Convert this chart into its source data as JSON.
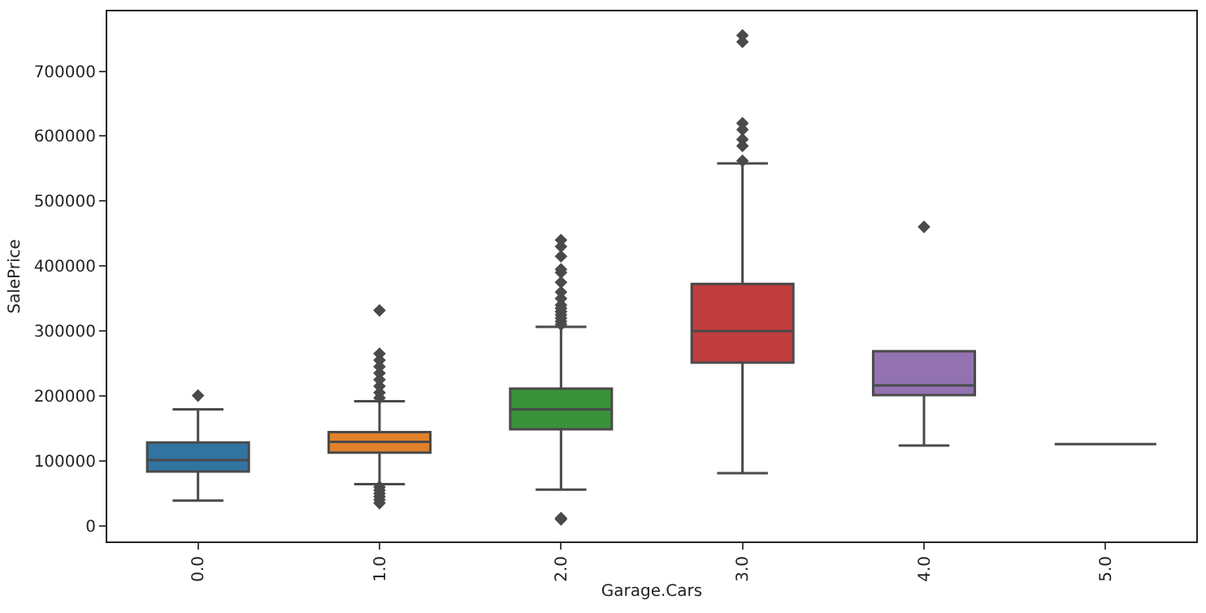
{
  "chart_data": {
    "type": "box",
    "xlabel": "Garage.Cars",
    "ylabel": "SalePrice",
    "categories": [
      "0.0",
      "1.0",
      "2.0",
      "3.0",
      "4.0",
      "5.0"
    ],
    "colors": [
      "#3274a1",
      "#e1812c",
      "#3a923a",
      "#c03d3e",
      "#9372b2",
      "#4a4a4a"
    ],
    "boxes": [
      {
        "low": 39000,
        "q1": 83500,
        "median": 101000,
        "q3": 128500,
        "high": 179500,
        "outliers": [
          200500
        ]
      },
      {
        "low": 64200,
        "q1": 112800,
        "median": 129300,
        "q3": 144400,
        "high": 192000,
        "outliers": [
          35000,
          40000,
          45000,
          50000,
          55000,
          60000,
          197000,
          205000,
          215000,
          225000,
          235000,
          245000,
          255000,
          265000,
          331600
        ]
      },
      {
        "low": 55900,
        "q1": 148600,
        "median": 179500,
        "q3": 211300,
        "high": 306500,
        "outliers": [
          10000,
          12000,
          310000,
          315000,
          320000,
          325000,
          330000,
          335000,
          340000,
          350000,
          360000,
          375000,
          390000,
          395000,
          415000,
          430000,
          440000
        ]
      },
      {
        "low": 81000,
        "q1": 251400,
        "median": 299800,
        "q3": 372500,
        "high": 558000,
        "outliers": [
          562000,
          585000,
          595000,
          610000,
          620000,
          745000,
          755000
        ]
      },
      {
        "low": 123600,
        "q1": 201300,
        "median": 216300,
        "q3": 269000,
        "high": 269000,
        "outliers": [
          460200
        ]
      },
      {
        "low": 126000,
        "q1": 126000,
        "median": 126000,
        "q3": 126000,
        "high": 126000
      }
    ],
    "marker": "diamond",
    "ylim": [
      -24000,
      792000
    ],
    "yticks": [
      0,
      100000,
      200000,
      300000,
      400000,
      500000,
      600000,
      700000
    ],
    "grid": false
  }
}
